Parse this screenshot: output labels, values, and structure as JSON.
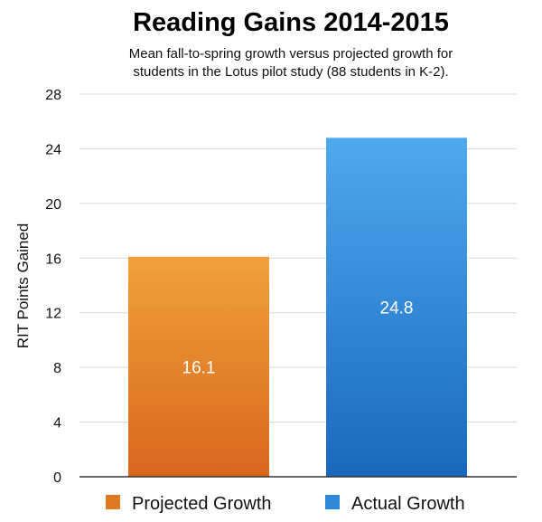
{
  "chart_data": {
    "type": "bar",
    "title": "Reading Gains 2014-2015",
    "subtitle_lines": [
      "Mean fall-to-spring growth versus projected growth for",
      "students in the Lotus pilot study (88 students in K-2)."
    ],
    "ylabel": "RIT Points Gained",
    "xlabel": "",
    "ylim": [
      0,
      28
    ],
    "yticks": [
      "0",
      "4",
      "8",
      "12",
      "16",
      "20",
      "24",
      "28"
    ],
    "grid": true,
    "legend_position": "bottom",
    "categories": [
      "Projected Growth",
      "Actual Growth"
    ],
    "values": [
      16.1,
      24.8
    ],
    "value_labels": [
      "16.1",
      "24.8"
    ],
    "colors": [
      {
        "top": "#f0a13a",
        "bottom": "#d9661c"
      },
      {
        "top": "#4fa9ee",
        "bottom": "#1968bd"
      }
    ],
    "legend": [
      {
        "label": "Projected Growth",
        "color": "#e07a22"
      },
      {
        "label": "Actual Growth",
        "color": "#2f88d8"
      }
    ]
  }
}
